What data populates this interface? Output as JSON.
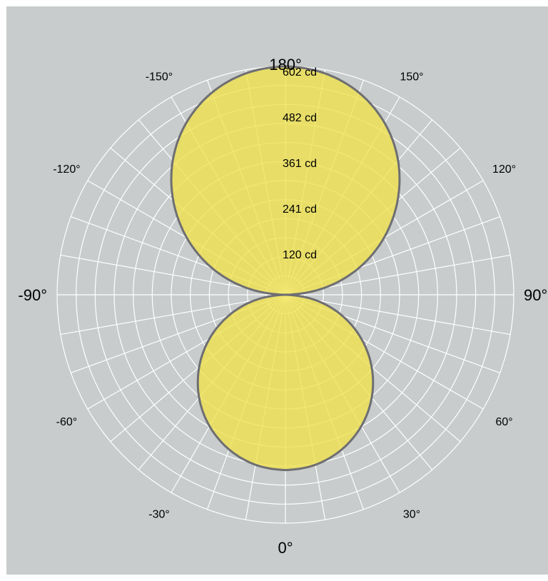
{
  "chart_data": {
    "type": "polar",
    "unit": "cd",
    "radial_max": 602,
    "ring_labels": [
      "120 cd",
      "241 cd",
      "361 cd",
      "482 cd",
      "602 cd"
    ],
    "ring_values": [
      120,
      241,
      361,
      482,
      602
    ],
    "angle_labels": [
      {
        "angle": 0,
        "text": "0°",
        "major": true
      },
      {
        "angle": 30,
        "text": "30°",
        "major": false
      },
      {
        "angle": 60,
        "text": "60°",
        "major": false
      },
      {
        "angle": 90,
        "text": "90°",
        "major": true
      },
      {
        "angle": 120,
        "text": "120°",
        "major": false
      },
      {
        "angle": 150,
        "text": "150°",
        "major": false
      },
      {
        "angle": 180,
        "text": "180°",
        "major": true
      },
      {
        "angle": -150,
        "text": "-150°",
        "major": false
      },
      {
        "angle": -120,
        "text": "-120°",
        "major": false
      },
      {
        "angle": -90,
        "text": "-90°",
        "major": true
      },
      {
        "angle": -60,
        "text": "-60°",
        "major": false
      },
      {
        "angle": -30,
        "text": "-30°",
        "major": false
      }
    ],
    "series": [
      {
        "lobe": "upper",
        "angles": [
          90,
          100,
          110,
          120,
          130,
          140,
          150,
          160,
          170,
          180
        ],
        "values": [
          0,
          104,
          206,
          300,
          386,
          462,
          523,
          567,
          593,
          602
        ]
      },
      {
        "lobe": "lower",
        "angles": [
          0,
          10,
          20,
          30,
          40,
          50,
          60,
          70,
          80,
          90
        ],
        "values": [
          462,
          455,
          434,
          400,
          354,
          297,
          231,
          158,
          80,
          0
        ]
      }
    ],
    "colors": {
      "background": "#c8cccc",
      "grid": "#ffffff",
      "fill": "#f0e24a",
      "outline": "#6e6e72"
    }
  }
}
